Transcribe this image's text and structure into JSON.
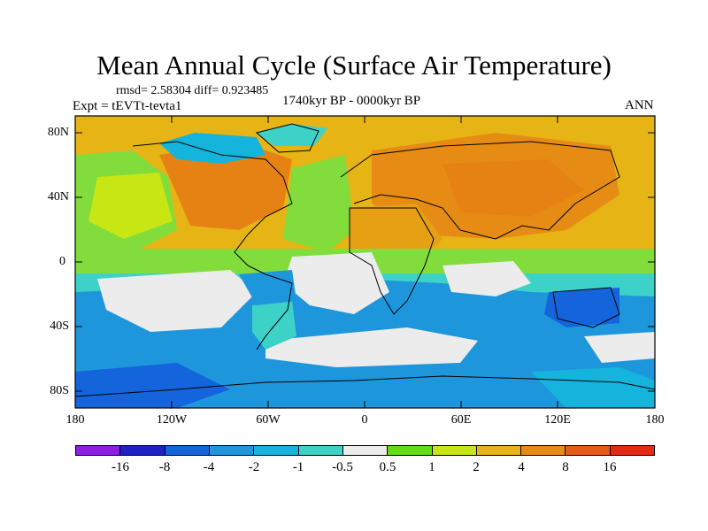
{
  "title": "Mean Annual Cycle (Surface Air Temperature)",
  "stats_line": "rmsd= 2.58304 diff= 0.923485",
  "experiment_line": "Expt = tEVTt-tevta1",
  "period_line": "1740kyr BP - 0000kyr BP",
  "season": "ANN",
  "lat_labels": [
    "80N",
    "40N",
    "0",
    "40S",
    "80S"
  ],
  "lon_labels": [
    "180",
    "120W",
    "60W",
    "0",
    "60E",
    "120E",
    "180"
  ],
  "colorbar": {
    "labels": [
      "-16",
      "-8",
      "-4",
      "-2",
      "-1",
      "-0.5",
      "0.5",
      "1",
      "2",
      "4",
      "8",
      "16"
    ],
    "colors": [
      "#8c1ee6",
      "#2020c8",
      "#1464dc",
      "#1e96dc",
      "#14b4dc",
      "#3cd2c8",
      "#ececec",
      "#64dc14",
      "#c8e614",
      "#e6b414",
      "#e68c14",
      "#e65a14",
      "#e62814"
    ]
  },
  "palette": {
    "ocean_cool": "#1ea0dc",
    "ocean_neutral": "#ececec",
    "land_warm": "#e6a014",
    "land_hot": "#e68214",
    "green": "#82dc3c"
  }
}
